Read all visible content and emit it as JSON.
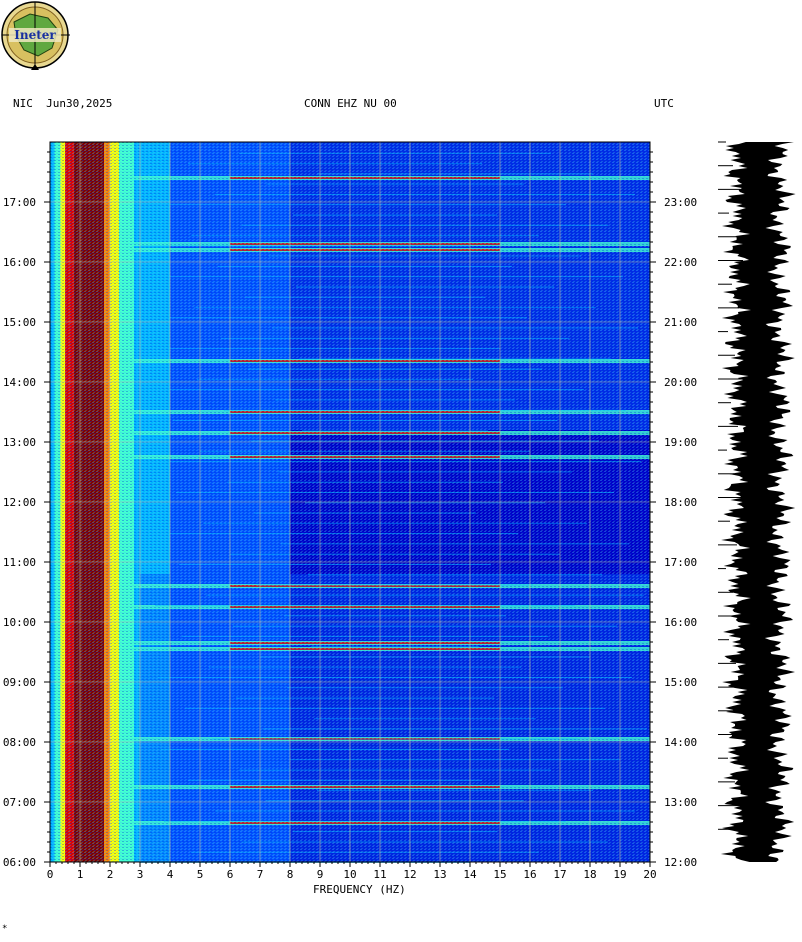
{
  "header": {
    "left": "NIC  Jun30,2025",
    "center": "CONN EHZ NU 00",
    "right": "UTC"
  },
  "logo": {
    "text": "Ineter",
    "icon": "ineter-logo-icon"
  },
  "chart_data": {
    "type": "heatmap",
    "title": "CONN EHZ NU 00",
    "xlabel": "FREQUENCY (HZ)",
    "ylabel": "",
    "xlim": [
      0,
      20
    ],
    "x_ticks": [
      "0",
      "1",
      "2",
      "3",
      "4",
      "5",
      "6",
      "7",
      "8",
      "9",
      "10",
      "11",
      "12",
      "13",
      "14",
      "15",
      "16",
      "17",
      "18",
      "19",
      "20"
    ],
    "y_left_ticks": [
      "06:00",
      "07:00",
      "08:00",
      "09:00",
      "10:00",
      "11:00",
      "12:00",
      "13:00",
      "14:00",
      "15:00",
      "16:00",
      "17:00"
    ],
    "y_right_ticks": [
      "12:00",
      "13:00",
      "14:00",
      "15:00",
      "16:00",
      "17:00",
      "18:00",
      "19:00",
      "20:00",
      "21:00",
      "22:00",
      "23:00"
    ],
    "y_left_range_hours": [
      6,
      18
    ],
    "y_right_range_hours": [
      12,
      24
    ],
    "grid": true,
    "colormap": [
      "#0000c8",
      "#0050ff",
      "#00b4ff",
      "#40ffd0",
      "#ffff00",
      "#ff8000",
      "#e00000",
      "#800000"
    ],
    "strong_band_hours": [
      6.65,
      7.25,
      8.05,
      9.55,
      9.65,
      10.25,
      10.6,
      12.75,
      13.15,
      13.5,
      14.35,
      16.2,
      16.3,
      17.4
    ]
  },
  "corner_mark": "*"
}
